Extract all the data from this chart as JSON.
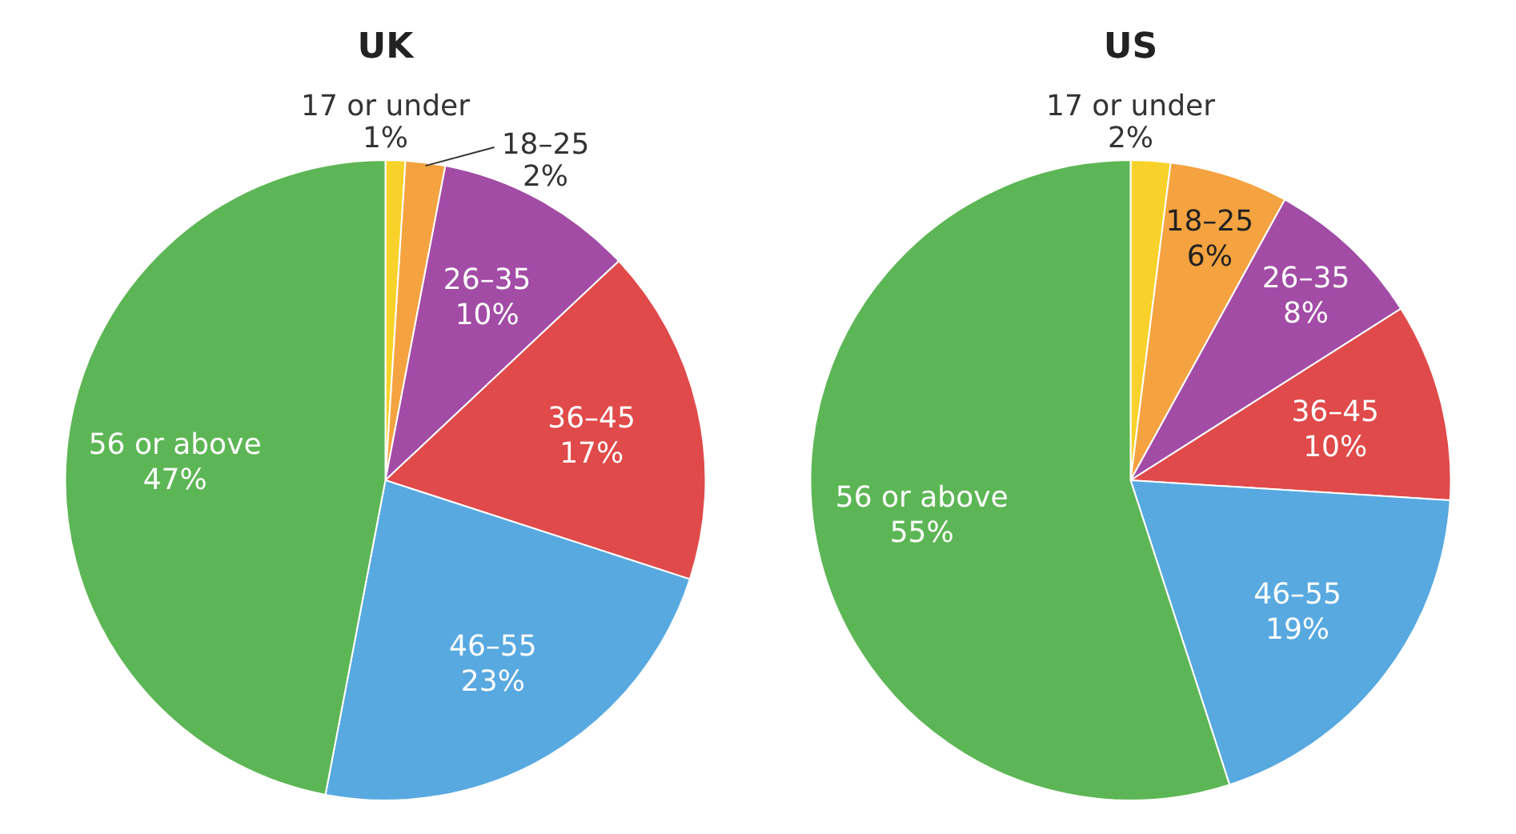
{
  "chart_data": [
    {
      "type": "pie",
      "title": "UK",
      "categories": [
        "17 or under",
        "18–25",
        "26–35",
        "36–45",
        "46–55",
        "56 or above"
      ],
      "values": [
        1,
        2,
        10,
        17,
        23,
        47
      ],
      "value_labels": [
        "1%",
        "2%",
        "10%",
        "17%",
        "23%",
        "47%"
      ],
      "colors": [
        "#f8d22a",
        "#f4a340",
        "#a24ca6",
        "#e04a4a",
        "#58a9e0",
        "#5db655"
      ]
    },
    {
      "type": "pie",
      "title": "US",
      "categories": [
        "17 or under",
        "18–25",
        "26–35",
        "36–45",
        "46–55",
        "56 or above"
      ],
      "values": [
        2,
        6,
        8,
        10,
        19,
        55
      ],
      "value_labels": [
        "2%",
        "6%",
        "8%",
        "10%",
        "19%",
        "55%"
      ],
      "colors": [
        "#f8d22a",
        "#f4a340",
        "#a24ca6",
        "#e04a4a",
        "#58a9e0",
        "#5db655"
      ]
    }
  ]
}
